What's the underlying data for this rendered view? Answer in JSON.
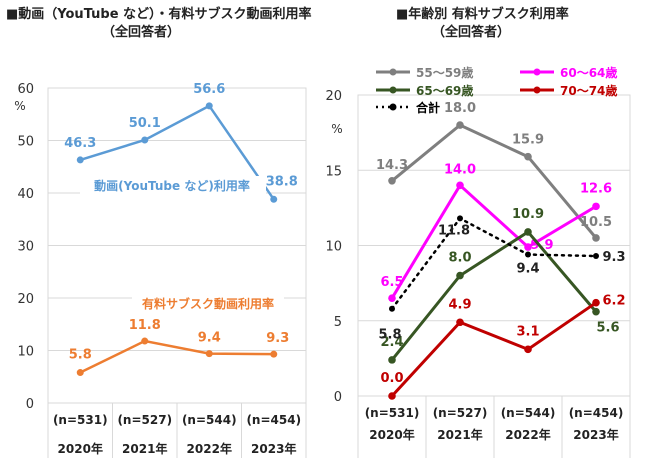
{
  "left_title": {
    "line1": "■動画（YouTube など）・有料サブスク動画利用率",
    "line2": "（全回答者）"
  },
  "right_title": {
    "line1": "■年齢別 有料サブスク利用率",
    "line2": "（全回答者）"
  },
  "chart_data": [
    {
      "type": "line",
      "title": "動画（YouTube など）・有料サブスク動画利用率",
      "subtitle": "（全回答者）",
      "ylabel": "%",
      "ylim": [
        0,
        60
      ],
      "yticks": [
        0,
        10,
        20,
        30,
        40,
        50,
        60
      ],
      "categories": [
        "(n=531)\n2020年",
        "(n=527)\n2021年",
        "(n=544)\n2022年",
        "(n=454)\n2023年"
      ],
      "category_n": [
        "(n=531)",
        "(n=527)",
        "(n=544)",
        "(n=454)"
      ],
      "category_year": [
        "2020年",
        "2021年",
        "2022年",
        "2023年"
      ],
      "grid": true,
      "series": [
        {
          "name": "動画(YouTube など)利用率",
          "color": "#5b9bd5",
          "values": [
            46.3,
            50.1,
            56.6,
            38.8
          ],
          "labels": [
            "46.3",
            "50.1",
            "56.6",
            "38.8"
          ]
        },
        {
          "name": "有料サブスク動画利用率",
          "color": "#ed7d31",
          "values": [
            5.8,
            11.8,
            9.4,
            9.3
          ],
          "labels": [
            "5.8",
            "11.8",
            "9.4",
            "9.3"
          ]
        }
      ]
    },
    {
      "type": "line",
      "title": "年齢別 有料サブスク利用率",
      "subtitle": "（全回答者）",
      "ylabel": "%",
      "ylim": [
        0,
        20
      ],
      "yticks": [
        0,
        5,
        10,
        15,
        20
      ],
      "categories": [
        "(n=531)\n2020年",
        "(n=527)\n2021年",
        "(n=544)\n2022年",
        "(n=454)\n2023年"
      ],
      "category_n": [
        "(n=531)",
        "(n=527)",
        "(n=544)",
        "(n=454)"
      ],
      "category_year": [
        "2020年",
        "2021年",
        "2022年",
        "2023年"
      ],
      "grid": true,
      "legend_position": "top",
      "series": [
        {
          "name": "55～59歳",
          "color": "#7f7f7f",
          "values": [
            14.3,
            18.0,
            15.9,
            10.5
          ],
          "labels": [
            "14.3",
            "18.0",
            "15.9",
            "10.5"
          ]
        },
        {
          "name": "60～64歳",
          "color": "#ff00ff",
          "values": [
            6.5,
            14.0,
            9.9,
            12.6
          ],
          "labels": [
            "6.5",
            "14.0",
            "9.9",
            "12.6"
          ]
        },
        {
          "name": "65～69歳",
          "color": "#375623",
          "values": [
            2.4,
            8.0,
            10.9,
            5.6
          ],
          "labels": [
            "2.4",
            "8.0",
            "10.9",
            "5.6"
          ]
        },
        {
          "name": "70～74歳",
          "color": "#c00000",
          "values": [
            0.0,
            4.9,
            3.1,
            6.2
          ],
          "labels": [
            "0.0",
            "4.9",
            "3.1",
            "6.2"
          ]
        },
        {
          "name": "合計",
          "color": "#000000",
          "dashed": true,
          "values": [
            5.8,
            11.8,
            9.4,
            9.3
          ],
          "labels": [
            "5.8",
            "11.8",
            "9.4",
            "9.3"
          ]
        }
      ]
    }
  ]
}
